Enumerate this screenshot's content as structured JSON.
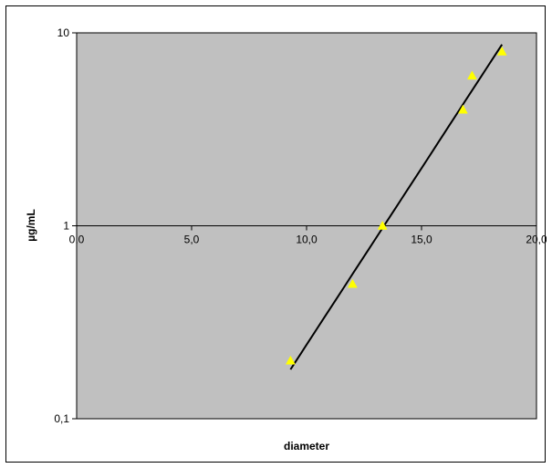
{
  "chart_data": {
    "type": "scatter",
    "title": "",
    "xlabel": "diameter",
    "ylabel": "µg/mL",
    "xlim": [
      0,
      20
    ],
    "ylim": [
      0.1,
      10
    ],
    "y_scale": "log",
    "x_ticks": [
      0,
      5,
      10,
      15,
      20
    ],
    "x_tick_labels": [
      "0,0",
      "5,0",
      "10,0",
      "15,0",
      "20,0"
    ],
    "y_ticks": [
      0.1,
      1,
      10
    ],
    "y_tick_labels": [
      "0,1",
      "1",
      "10"
    ],
    "grid": true,
    "legend": "none",
    "plot_background": "#c0c0c0",
    "series": [
      {
        "marker": "triangle",
        "color": "#ffff00",
        "x": [
          9.3,
          12.0,
          13.3,
          16.8,
          17.2,
          18.5
        ],
        "y": [
          0.2,
          0.5,
          1.0,
          4.0,
          6.0,
          8.0
        ]
      }
    ],
    "trendline": {
      "type": "exponential",
      "color": "#000000",
      "x": [
        9.3,
        18.5
      ],
      "y": [
        0.18,
        8.7
      ]
    }
  }
}
